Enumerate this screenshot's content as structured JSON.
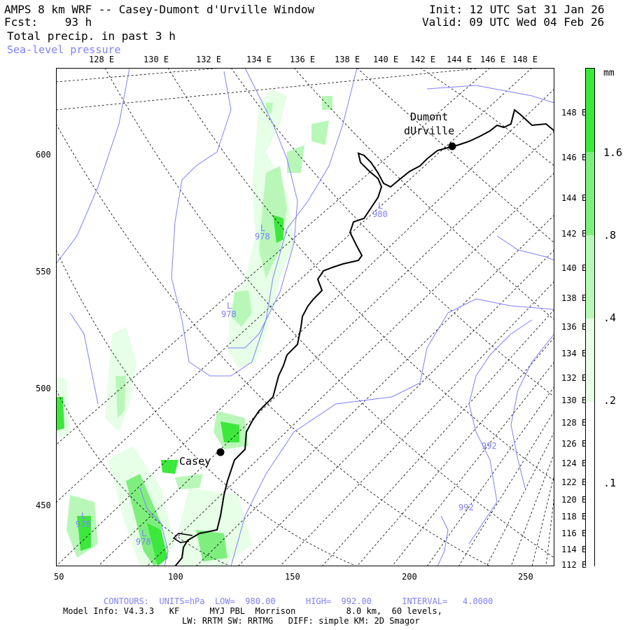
{
  "header": {
    "title": "AMPS 8 km WRF -- Casey-Dumont d'Urville Window",
    "fcst_label": "Fcst:",
    "fcst_value": "93 h",
    "field1": "Total precip. in past 3 h",
    "field2": "Sea-level pressure",
    "init": "Init: 12 UTC Sat 31 Jan 26",
    "valid": "Valid: 09 UTC Wed 04 Feb 26"
  },
  "top_lon_labels": [
    "128 E",
    "130 E",
    "132 E",
    "134 E",
    "136 E",
    "138 E",
    "140 E",
    "142 E",
    "144 E",
    "146 E",
    "148 E"
  ],
  "right_lon_labels": [
    "148 E",
    "146 E",
    "144 E",
    "142 E",
    "140 E",
    "138 E",
    "136 E",
    "134 E",
    "132 E",
    "130 E",
    "128 E",
    "126 E",
    "124 E",
    "122 E",
    "120 E",
    "118 E",
    "116 E",
    "114 E",
    "112 E"
  ],
  "y_axis_labels": [
    "600",
    "550",
    "500",
    "450"
  ],
  "x_axis_labels": [
    "50",
    "100",
    "150",
    "200",
    "250"
  ],
  "stations": [
    {
      "name_line1": "Dumont",
      "name_line2": "dUrville"
    },
    {
      "name_line1": "Casey",
      "name_line2": ""
    }
  ],
  "pressure_labels": [
    {
      "letter": "L",
      "value": "980"
    },
    {
      "letter": "L",
      "value": "978"
    },
    {
      "letter": "L",
      "value": "978"
    },
    {
      "letter": "L",
      "value": "978"
    },
    {
      "letter": "L",
      "value": "978"
    },
    {
      "letter": "",
      "value": "992"
    },
    {
      "letter": "",
      "value": "992"
    }
  ],
  "colorbar": {
    "unit": "mm",
    "labels": [
      "1.6",
      ".8",
      ".4",
      ".2",
      ".1"
    ],
    "colors": [
      "#ffffff",
      "#e6ffe6",
      "#b9f7b9",
      "#7eee7e",
      "#3de83d"
    ]
  },
  "footer": {
    "contours": "CONTOURS:  UNITS=hPa  LOW=  980.00      HIGH=  992.00      INTERVAL=   4.0000",
    "model1": "Model Info: V4.3.3   KF      MYJ PBL  Morrison          8.0 km,  60 levels,",
    "model2": "LW: RRTM SW: RRTMG   DIFF: simple KM: 2D Smagor"
  },
  "colors": {
    "contour": "#7f7fff",
    "coast": "#000000",
    "precip_light": "#e6ffe6",
    "precip_mid": "#b9f7b9",
    "precip_heavy": "#3de83d"
  }
}
